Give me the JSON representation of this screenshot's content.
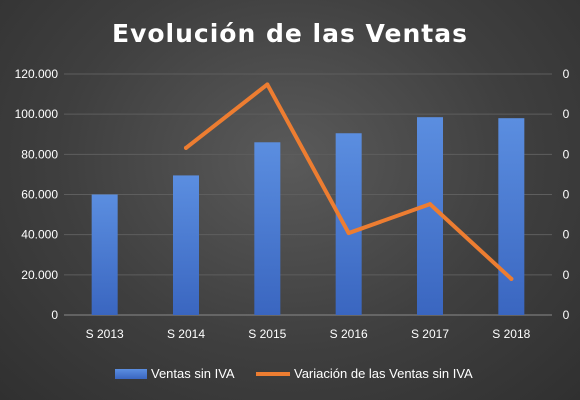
{
  "chart_data": {
    "type": "bar",
    "title": "Evolución de las Ventas",
    "categories": [
      "S 2013",
      "S 2014",
      "S 2015",
      "S 2016",
      "S 2017",
      "S 2018"
    ],
    "series": [
      {
        "name": "Ventas sin IVA",
        "type": "bar",
        "axis": "left",
        "values": [
          60000,
          69500,
          86000,
          90500,
          98500,
          98000
        ],
        "color": "#4472C4"
      },
      {
        "name": "Variación de las Ventas sin IVA",
        "type": "line",
        "axis": "right",
        "values": [
          null,
          0.158,
          0.237,
          0.052,
          0.088,
          -0.005
        ],
        "color": "#ED7D31"
      }
    ],
    "y_ticks": [
      "0",
      "20.000",
      "40.000",
      "60.000",
      "80.000",
      "100.000",
      "120.000"
    ],
    "y2_ticks": [
      "0",
      "0",
      "0",
      "0",
      "0",
      "0",
      "0"
    ],
    "ylim": [
      0,
      120000
    ],
    "y2lim": [
      -0.05,
      0.25
    ],
    "grid": true,
    "legend_position": "bottom",
    "background_color": "#404040",
    "text_color": "#FFFFFF"
  }
}
